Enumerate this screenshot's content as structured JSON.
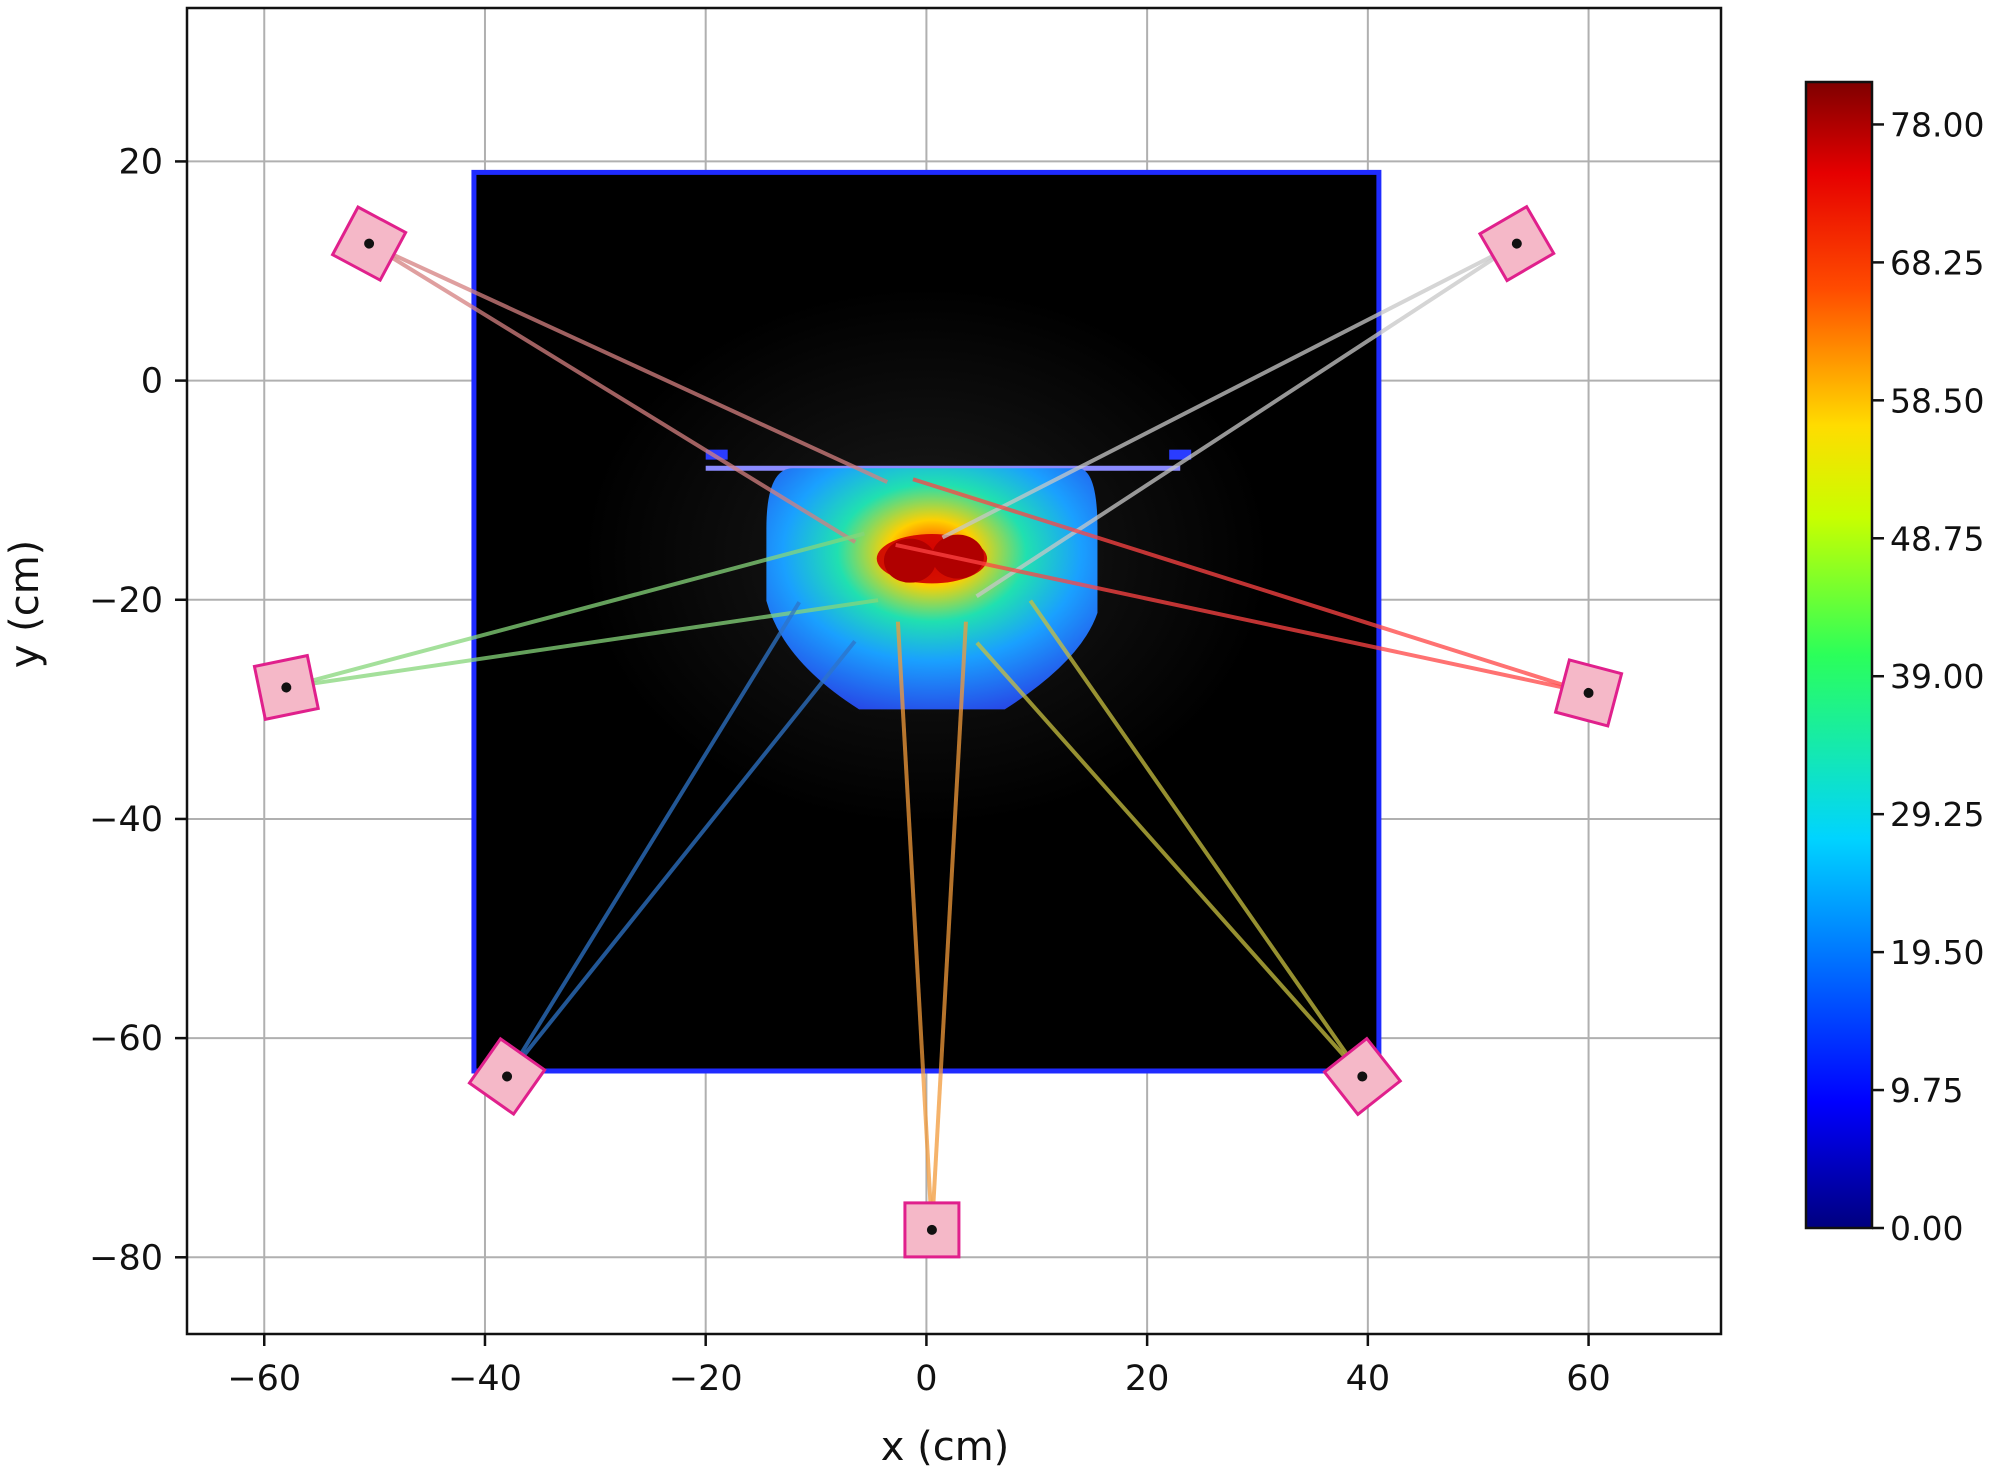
{
  "chart_data": {
    "type": "scatter",
    "xlabel": "x (cm)",
    "ylabel": "y (cm)",
    "xlim": [
      -67,
      72
    ],
    "ylim": [
      -87,
      34
    ],
    "xticks": [
      -60,
      -40,
      -20,
      0,
      20,
      40,
      60
    ],
    "yticks": [
      20,
      0,
      -20,
      -40,
      -60,
      -80
    ],
    "xtick_labels": [
      "−60",
      "−40",
      "−20",
      "0",
      "20",
      "40",
      "60"
    ],
    "ytick_labels": [
      "20",
      "0",
      "−20",
      "−40",
      "−60",
      "−80"
    ],
    "grid": true,
    "phantom": {
      "x": [
        -41,
        41
      ],
      "y": [
        -63,
        19
      ]
    },
    "dose_region": {
      "x": [
        -14.5,
        15.5
      ],
      "y": [
        -30,
        -8
      ]
    },
    "hot_spot": {
      "x": [
        -4.5,
        5.5
      ],
      "y": [
        -18.5,
        -14
      ]
    },
    "sources": [
      {
        "x": -50.5,
        "y": 12.5,
        "beam_color": "#d58080",
        "beam_target": [
          -5,
          -12
        ]
      },
      {
        "x": 53.5,
        "y": 12.5,
        "beam_color": "#c8c8c8",
        "beam_target": [
          3,
          -17
        ]
      },
      {
        "x": -58,
        "y": -28,
        "beam_color": "#86d67a",
        "beam_target": [
          -5,
          -17
        ]
      },
      {
        "x": 60,
        "y": -28.5,
        "beam_color": "#ff4444",
        "beam_target": [
          -2,
          -12
        ]
      },
      {
        "x": -38,
        "y": -63.5,
        "beam_color": "#2e74c8",
        "beam_target": [
          -9,
          -22
        ]
      },
      {
        "x": 39.5,
        "y": -63.5,
        "beam_color": "#c8c040",
        "beam_target": [
          7,
          -22
        ]
      },
      {
        "x": 0.5,
        "y": -77.5,
        "beam_color": "#f29a3a",
        "beam_target": [
          0.5,
          -22
        ]
      }
    ],
    "colorbar": {
      "colormap": "jet",
      "min": 0,
      "max": 81,
      "ticks": [
        0,
        9.75,
        19.5,
        29.25,
        39,
        48.75,
        58.5,
        68.25,
        78
      ],
      "tick_labels": [
        "0.00",
        "9.75",
        "19.50",
        "29.25",
        "39.00",
        "48.75",
        "58.50",
        "68.25",
        "78.00"
      ]
    }
  }
}
